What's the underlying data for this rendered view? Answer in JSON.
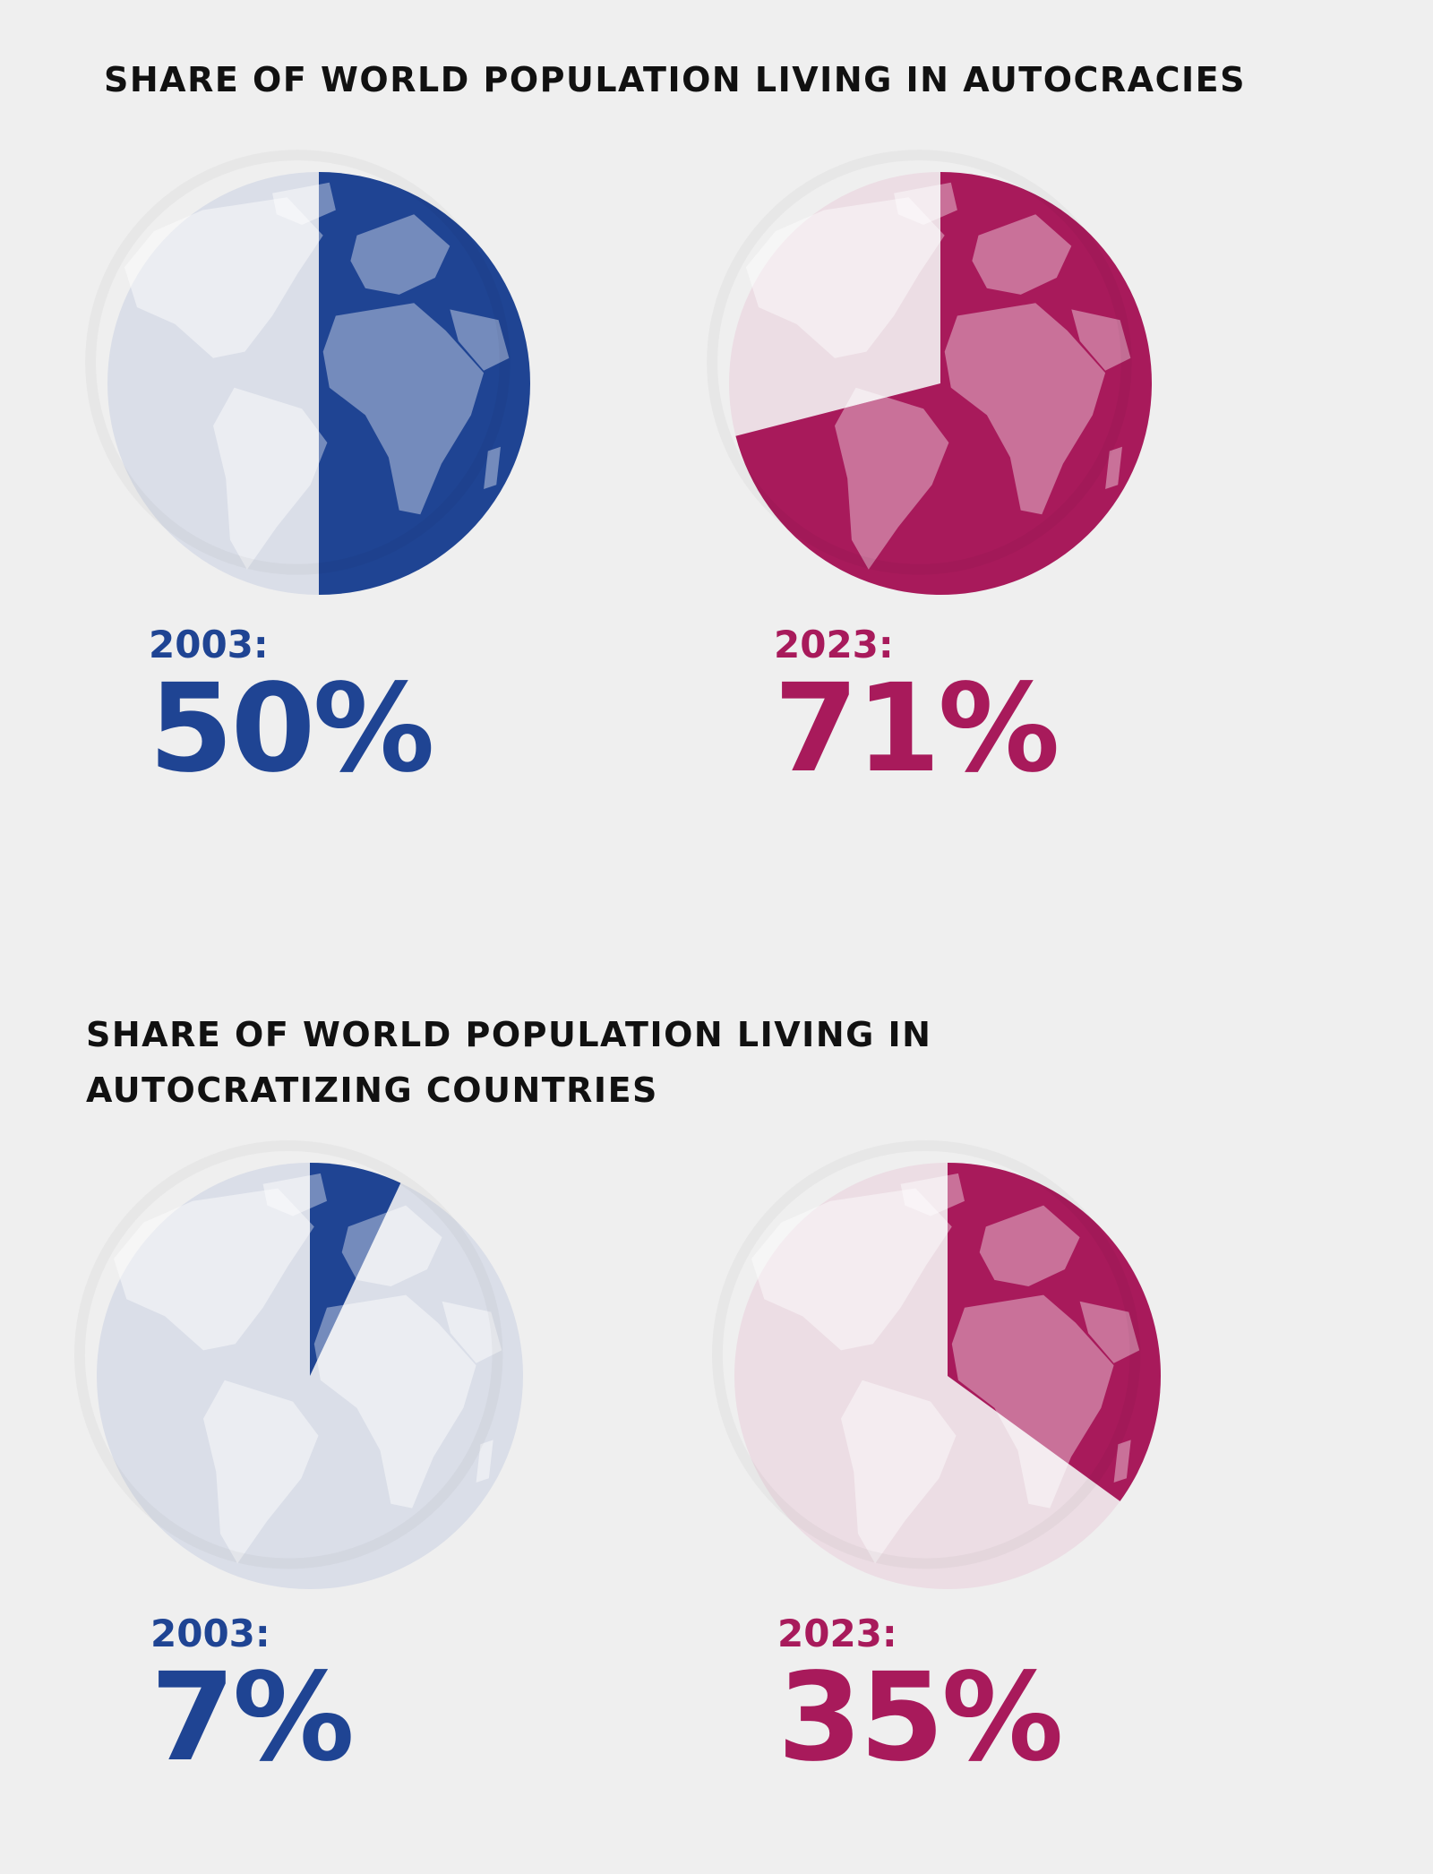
{
  "colors": {
    "background": "#efefef",
    "blue": "#1f4493",
    "magenta": "#a81a5b",
    "globe_blue_light": "#dadee8",
    "globe_magenta_light": "#ecdde4"
  },
  "sections": [
    {
      "title": "SHARE OF WORLD POPULATION LIVING IN AUTOCRACIES"
    },
    {
      "title": "SHARE OF WORLD POPULATION LIVING IN AUTOCRATIZING COUNTRIES"
    }
  ],
  "chart_data": [
    {
      "type": "pie",
      "title": "SHARE OF WORLD POPULATION LIVING IN AUTOCRACIES",
      "slices": [
        {
          "year": "2003:",
          "label": "50%",
          "value": 50,
          "color": "#1f4493",
          "light": "#dadee8"
        },
        {
          "year": "2023:",
          "label": "71%",
          "value": 71,
          "color": "#a81a5b",
          "light": "#ecdde4"
        }
      ]
    },
    {
      "type": "pie",
      "title": "SHARE OF WORLD POPULATION LIVING IN AUTOCRATIZING COUNTRIES",
      "slices": [
        {
          "year": "2003:",
          "label": "7%",
          "value": 7,
          "color": "#1f4493",
          "light": "#dadee8"
        },
        {
          "year": "2023:",
          "label": "35%",
          "value": 35,
          "color": "#a81a5b",
          "light": "#ecdde4"
        }
      ]
    }
  ]
}
